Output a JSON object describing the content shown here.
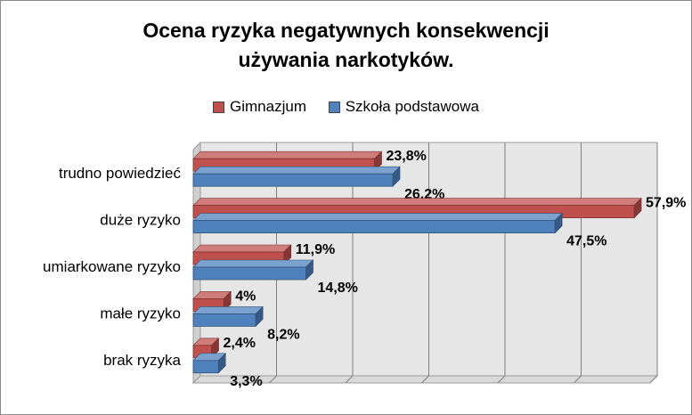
{
  "chart_data": {
    "type": "bar",
    "orientation": "horizontal",
    "title_lines": [
      "Ocena ryzyka negatywnych konsekwencji",
      "używania narkotyków."
    ],
    "categories": [
      "trudno powiedzieć",
      "duże ryzyko",
      "umiarkowane ryzyko",
      "małe ryzyko",
      "brak ryzyka"
    ],
    "series": [
      {
        "name": "Gimnazjum",
        "color": "#c0504d",
        "values": [
          23.8,
          57.9,
          11.9,
          4,
          2.4
        ],
        "labels": [
          "23,8%",
          "57,9%",
          "11,9%",
          "4%",
          "2,4%"
        ]
      },
      {
        "name": "Szkoła podstawowa",
        "color": "#4f81bd",
        "values": [
          26.2,
          47.5,
          14.8,
          8.2,
          3.3
        ],
        "labels": [
          "26,2%",
          "47,5%",
          "14,8%",
          "8,2%",
          "3,3%"
        ]
      }
    ],
    "legend_order": [
      0,
      1
    ],
    "xlim": [
      0,
      60
    ],
    "grid": true,
    "legend_position": "top",
    "three_d": true
  }
}
